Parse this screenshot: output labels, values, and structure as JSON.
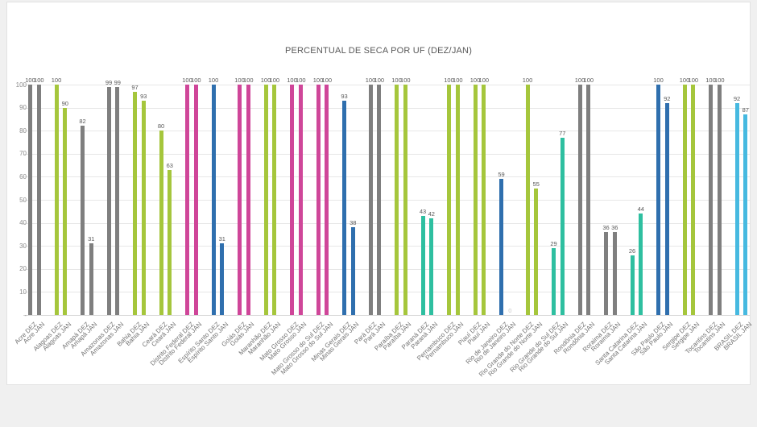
{
  "page": {
    "background_color": "#f0f0f0",
    "card_background_color": "#ffffff"
  },
  "chart_data": {
    "type": "bar",
    "title": "PERCENTUAL DE SECA POR UF (DEZ/JAN)",
    "xlabel": "",
    "ylabel": "",
    "ylim": [
      0,
      100
    ],
    "y_ticks": [
      {
        "value": 100,
        "label": "100"
      },
      {
        "value": 90,
        "label": "90"
      },
      {
        "value": 80,
        "label": "80"
      },
      {
        "value": 70,
        "label": "70"
      },
      {
        "value": 60,
        "label": "60"
      },
      {
        "value": 50,
        "label": "50"
      },
      {
        "value": 40,
        "label": "40"
      },
      {
        "value": 30,
        "label": "30"
      },
      {
        "value": 20,
        "label": "20"
      },
      {
        "value": 10,
        "label": "10"
      },
      {
        "value": 0,
        "label": "-"
      }
    ],
    "grid": true,
    "legend_position": "none",
    "value_labels": true,
    "series": [
      {
        "name": "DEZ"
      },
      {
        "name": "JAN"
      }
    ],
    "label_colors": {
      "value_label": "#595959",
      "axis_tick": "#8c8c8c",
      "category_label": "#737373",
      "title": "#595959"
    },
    "groups": [
      {
        "name": "Acre",
        "color": "#7f7f7f",
        "values": [
          100,
          100
        ]
      },
      {
        "name": "Alagoas",
        "color": "#a5c63c",
        "values": [
          100,
          90
        ]
      },
      {
        "name": "Amapá",
        "color": "#7f7f7f",
        "values": [
          82,
          31
        ]
      },
      {
        "name": "Amazonas",
        "color": "#7f7f7f",
        "values": [
          99,
          99
        ]
      },
      {
        "name": "Bahia",
        "color": "#a5c63c",
        "values": [
          97,
          93
        ]
      },
      {
        "name": "Ceará",
        "color": "#a5c63c",
        "values": [
          80,
          63
        ]
      },
      {
        "name": "Distrito Federal",
        "color": "#cf4699",
        "values": [
          100,
          100
        ]
      },
      {
        "name": "Espírito Santo",
        "color": "#2f6fae",
        "values": [
          100,
          31
        ]
      },
      {
        "name": "Goiás",
        "color": "#cf4699",
        "values": [
          100,
          100
        ]
      },
      {
        "name": "Maranhão",
        "color": "#a5c63c",
        "values": [
          100,
          100
        ]
      },
      {
        "name": "Mato Grosso",
        "color": "#cf4699",
        "values": [
          100,
          100
        ]
      },
      {
        "name": "Mato Grosso do Sul",
        "color": "#cf4699",
        "values": [
          100,
          100
        ]
      },
      {
        "name": "Minas Gerais",
        "color": "#2f6fae",
        "values": [
          93,
          38
        ]
      },
      {
        "name": "Pará",
        "color": "#7f7f7f",
        "values": [
          100,
          100
        ]
      },
      {
        "name": "Paraíba",
        "color": "#a5c63c",
        "values": [
          100,
          100
        ]
      },
      {
        "name": "Paraná",
        "color": "#2ebfa0",
        "values": [
          43,
          42
        ]
      },
      {
        "name": "Pernambuco",
        "color": "#a5c63c",
        "values": [
          100,
          100
        ]
      },
      {
        "name": "Piauí",
        "color": "#a5c63c",
        "values": [
          100,
          100
        ]
      },
      {
        "name": "Rio de Janeiro",
        "color": "#2f6fae",
        "values": [
          59,
          0
        ]
      },
      {
        "name": "Rio Grande do Norte",
        "color": "#a5c63c",
        "values": [
          100,
          55
        ]
      },
      {
        "name": "Rio Grande do Sul",
        "color": "#2ebfa0",
        "values": [
          29,
          77
        ]
      },
      {
        "name": "Rondônia",
        "color": "#7f7f7f",
        "values": [
          100,
          100
        ]
      },
      {
        "name": "Roraima",
        "color": "#7f7f7f",
        "values": [
          36,
          36
        ]
      },
      {
        "name": "Santa Catarina",
        "color": "#2ebfa0",
        "values": [
          26,
          44
        ]
      },
      {
        "name": "São Paulo",
        "color": "#2f6fae",
        "values": [
          100,
          92
        ]
      },
      {
        "name": "Sergipe",
        "color": "#a5c63c",
        "values": [
          100,
          100
        ]
      },
      {
        "name": "Tocantins",
        "color": "#7f7f7f",
        "values": [
          100,
          100
        ]
      },
      {
        "name": "BRASIL",
        "color": "#46b9e0",
        "values": [
          92,
          87
        ]
      }
    ]
  }
}
